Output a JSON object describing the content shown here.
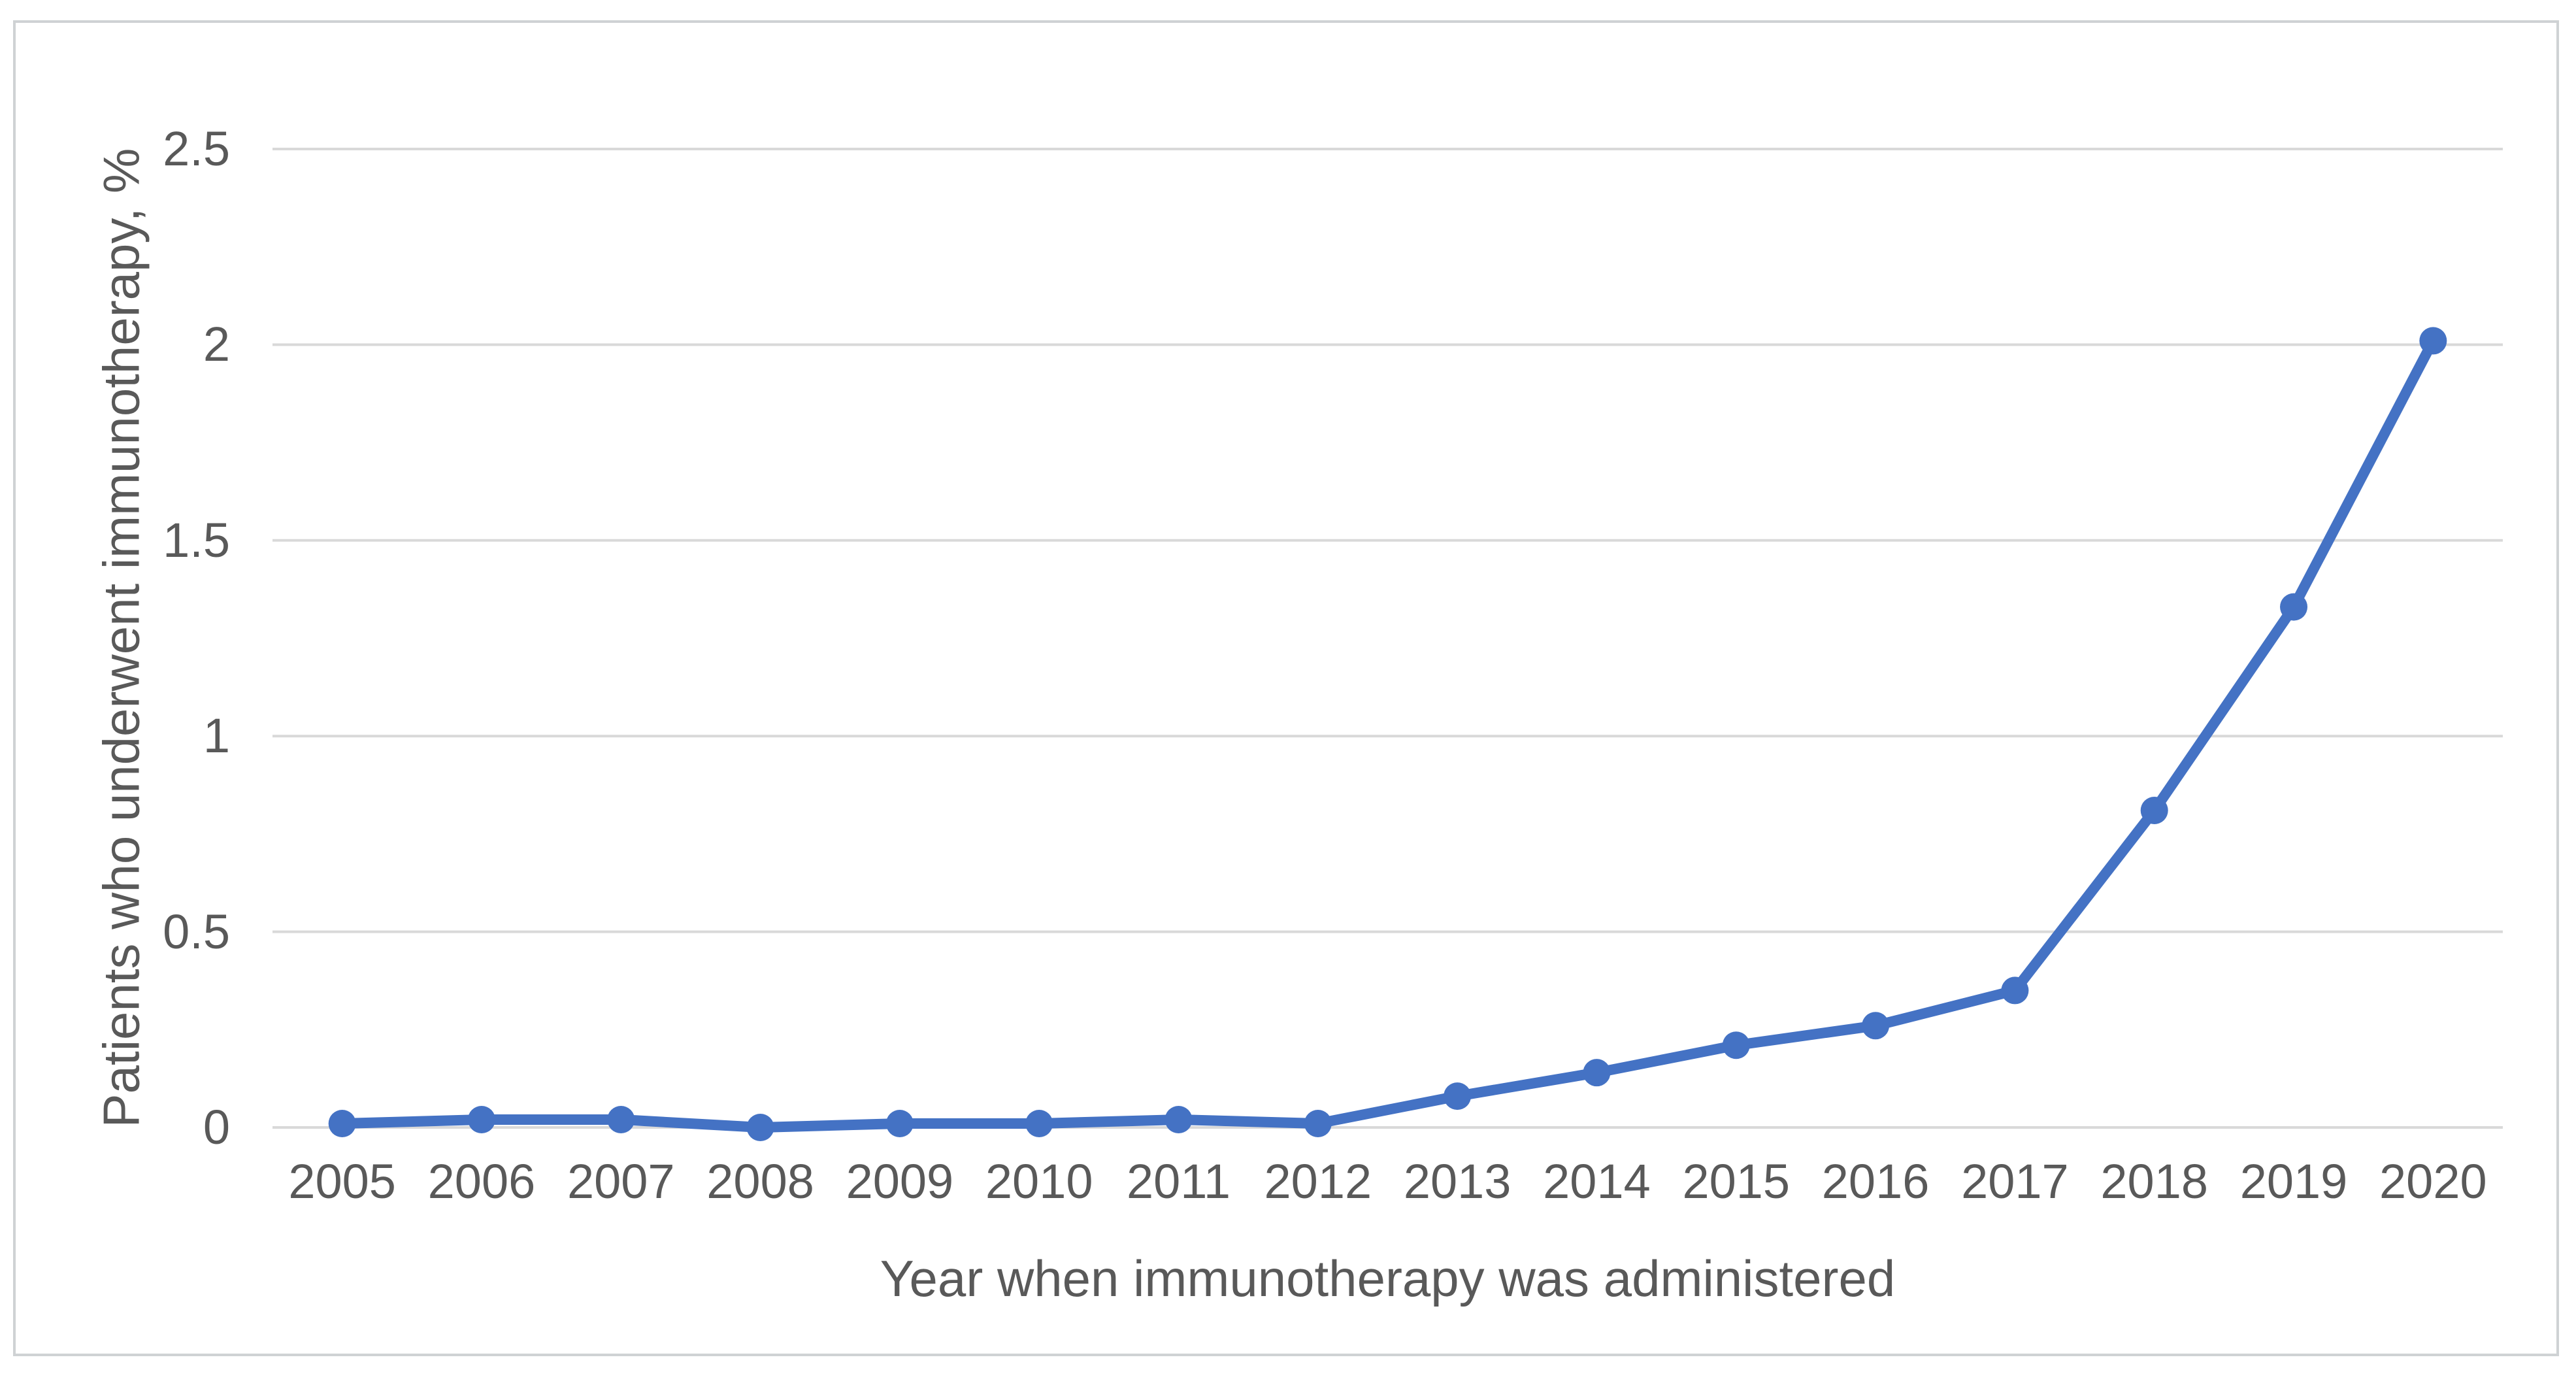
{
  "chart_data": {
    "type": "line",
    "title": "",
    "xlabel": "Year when immunotherapy was administered",
    "ylabel": "Patients who underwent immunotherapy, %",
    "categories": [
      "2005",
      "2006",
      "2007",
      "2008",
      "2009",
      "2010",
      "2011",
      "2012",
      "2013",
      "2014",
      "2015",
      "2016",
      "2017",
      "2018",
      "2019",
      "2020"
    ],
    "series": [
      {
        "name": "Patients who underwent immunotherapy, %",
        "values": [
          0.01,
          0.02,
          0.02,
          0.0,
          0.01,
          0.01,
          0.02,
          0.01,
          0.08,
          0.14,
          0.21,
          0.26,
          0.35,
          0.81,
          1.33,
          2.01
        ]
      }
    ],
    "ylim": [
      0,
      2.5
    ],
    "yticks": [
      0,
      0.5,
      1,
      1.5,
      2,
      2.5
    ],
    "ytick_labels": [
      "0",
      "0.5",
      "1",
      "1.5",
      "2",
      "2.5"
    ],
    "grid": "horizontal-only",
    "legend_position": "none",
    "marker": "circle",
    "colors": {
      "series_line": "#4472C4",
      "marker_fill": "#4472C4",
      "gridline": "#D9D9D9",
      "axis_text": "#595959",
      "figure_border": "#CFD2D4",
      "background": "#FFFFFF"
    }
  }
}
